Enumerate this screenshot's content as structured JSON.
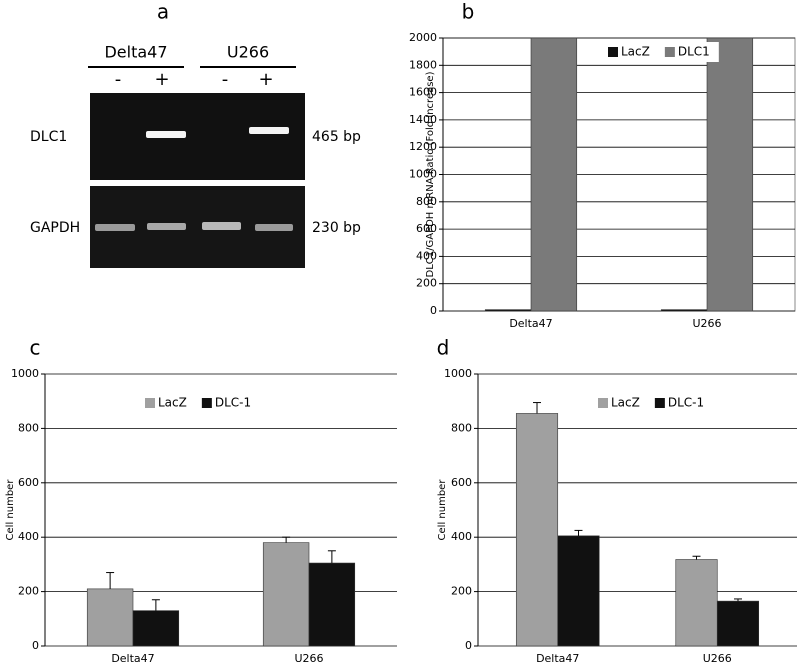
{
  "gel": {
    "label": "a",
    "lanes": [
      "Delta47",
      "U266"
    ],
    "signs": [
      "-",
      "+",
      "-",
      "+"
    ],
    "rows": [
      {
        "name": "DLC1",
        "size": "465 bp"
      },
      {
        "name": "GAPDH",
        "size": "230 bp"
      }
    ]
  },
  "chart_data": [
    {
      "type": "bar",
      "label": "b",
      "ylabel": "DLC1/GAPDH mRNA Ratio (Fold Increase)",
      "categories": [
        "Delta47",
        "U266"
      ],
      "series": [
        {
          "name": "LacZ",
          "color": "#111111",
          "values": [
            10,
            10
          ]
        },
        {
          "name": "DLC1",
          "color": "#7a7a7a",
          "values": [
            2000,
            2000
          ]
        }
      ],
      "ylim": [
        0,
        2000
      ],
      "yticks": [
        0,
        200,
        400,
        600,
        800,
        1000,
        1200,
        1400,
        1600,
        1800,
        2000
      ],
      "grid": true
    },
    {
      "type": "bar",
      "label": "c",
      "ylabel": "Cell number",
      "categories": [
        "Delta47",
        "U266"
      ],
      "series": [
        {
          "name": "LacZ",
          "color": "#a0a0a0",
          "values": [
            210,
            380
          ],
          "errors": [
            60,
            20
          ]
        },
        {
          "name": "DLC-1",
          "color": "#111111",
          "values": [
            130,
            305
          ],
          "errors": [
            40,
            45
          ]
        }
      ],
      "ylim": [
        0,
        1000
      ],
      "yticks": [
        0,
        200,
        400,
        600,
        800,
        1000
      ],
      "grid": true
    },
    {
      "type": "bar",
      "label": "d",
      "ylabel": "Cell number",
      "categories": [
        "Delta47",
        "U266"
      ],
      "series": [
        {
          "name": "LacZ",
          "color": "#a0a0a0",
          "values": [
            855,
            318
          ],
          "errors": [
            40,
            12
          ]
        },
        {
          "name": "DLC-1",
          "color": "#111111",
          "values": [
            405,
            165
          ],
          "errors": [
            20,
            8
          ]
        }
      ],
      "ylim": [
        0,
        1000
      ],
      "yticks": [
        0,
        200,
        400,
        600,
        800,
        1000
      ],
      "grid": true
    }
  ]
}
